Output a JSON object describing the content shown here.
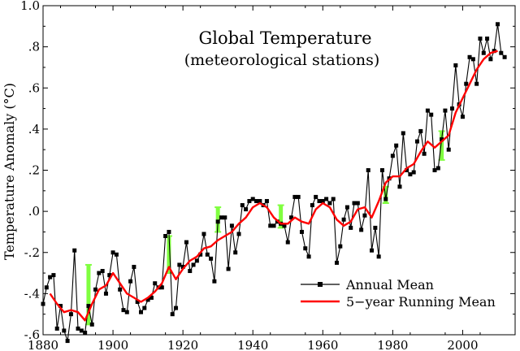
{
  "chart_data": {
    "type": "line",
    "title": "Global Temperature",
    "subtitle": "(meteorological stations)",
    "xlabel": "",
    "ylabel": "Temperature Anomaly (°C)",
    "xlim": [
      1880,
      2015
    ],
    "ylim": [
      -0.6,
      1.0
    ],
    "x_ticks": [
      1880,
      1900,
      1920,
      1940,
      1960,
      1980,
      2000
    ],
    "y_ticks": [
      -0.6,
      -0.4,
      -0.2,
      0.0,
      0.2,
      0.4,
      0.6,
      0.8,
      1.0
    ],
    "x_tick_labels": [
      "1880",
      "1900",
      "1920",
      "1940",
      "1960",
      "1980",
      "2000"
    ],
    "y_tick_labels": [
      "-.6",
      "-.4",
      "-.2",
      ".0",
      ".2",
      ".4",
      ".6",
      ".8",
      "1.0"
    ],
    "grid": false,
    "legend_position": "bottom-right",
    "series": [
      {
        "name": "Annual Mean",
        "color": "#000000",
        "marker": "square",
        "x": [
          1880,
          1881,
          1882,
          1883,
          1884,
          1885,
          1886,
          1887,
          1888,
          1889,
          1890,
          1891,
          1892,
          1893,
          1894,
          1895,
          1896,
          1897,
          1898,
          1899,
          1900,
          1901,
          1902,
          1903,
          1904,
          1905,
          1906,
          1907,
          1908,
          1909,
          1910,
          1911,
          1912,
          1913,
          1914,
          1915,
          1916,
          1917,
          1918,
          1919,
          1920,
          1921,
          1922,
          1923,
          1924,
          1925,
          1926,
          1927,
          1928,
          1929,
          1930,
          1931,
          1932,
          1933,
          1934,
          1935,
          1936,
          1937,
          1938,
          1939,
          1940,
          1941,
          1942,
          1943,
          1944,
          1945,
          1946,
          1947,
          1948,
          1949,
          1950,
          1951,
          1952,
          1953,
          1954,
          1955,
          1956,
          1957,
          1958,
          1959,
          1960,
          1961,
          1962,
          1963,
          1964,
          1965,
          1966,
          1967,
          1968,
          1969,
          1970,
          1971,
          1972,
          1973,
          1974,
          1975,
          1976,
          1977,
          1978,
          1979,
          1980,
          1981,
          1982,
          1983,
          1984,
          1985,
          1986,
          1987,
          1988,
          1989,
          1990,
          1991,
          1992,
          1993,
          1994,
          1995,
          1996,
          1997,
          1998,
          1999,
          2000,
          2001,
          2002,
          2003,
          2004,
          2005,
          2006,
          2007,
          2008,
          2009,
          2010,
          2011,
          2012
        ],
        "y": [
          -0.45,
          -0.37,
          -0.32,
          -0.31,
          -0.57,
          -0.46,
          -0.58,
          -0.63,
          -0.5,
          -0.19,
          -0.57,
          -0.58,
          -0.59,
          -0.46,
          -0.55,
          -0.38,
          -0.3,
          -0.29,
          -0.4,
          -0.31,
          -0.2,
          -0.21,
          -0.38,
          -0.48,
          -0.49,
          -0.34,
          -0.27,
          -0.44,
          -0.49,
          -0.47,
          -0.43,
          -0.42,
          -0.35,
          -0.37,
          -0.37,
          -0.12,
          -0.1,
          -0.5,
          -0.47,
          -0.26,
          -0.27,
          -0.15,
          -0.29,
          -0.26,
          -0.24,
          -0.21,
          -0.11,
          -0.21,
          -0.23,
          -0.34,
          -0.05,
          -0.03,
          -0.03,
          -0.28,
          -0.07,
          -0.2,
          -0.11,
          0.03,
          0.01,
          0.05,
          0.06,
          0.05,
          0.05,
          0.03,
          0.05,
          -0.07,
          -0.07,
          -0.05,
          -0.06,
          -0.07,
          -0.15,
          -0.03,
          0.07,
          0.07,
          -0.1,
          -0.18,
          -0.22,
          0.03,
          0.07,
          0.05,
          0.05,
          0.06,
          0.04,
          0.06,
          -0.25,
          -0.17,
          -0.04,
          0.02,
          -0.08,
          0.04,
          0.04,
          -0.09,
          -0.02,
          0.2,
          -0.19,
          -0.08,
          -0.22,
          0.2,
          0.06,
          0.16,
          0.27,
          0.32,
          0.12,
          0.38,
          0.2,
          0.18,
          0.19,
          0.34,
          0.39,
          0.28,
          0.49,
          0.47,
          0.2,
          0.21,
          0.35,
          0.49,
          0.3,
          0.5,
          0.71,
          0.52,
          0.46,
          0.62,
          0.75,
          0.74,
          0.62,
          0.84,
          0.77,
          0.84,
          0.74,
          0.78,
          0.91,
          0.77,
          0.75
        ]
      },
      {
        "name": "5-year Running Mean",
        "color": "#ff0000",
        "x": [
          1882,
          1884,
          1886,
          1888,
          1890,
          1892,
          1894,
          1896,
          1898,
          1900,
          1902,
          1904,
          1906,
          1908,
          1910,
          1912,
          1914,
          1916,
          1918,
          1920,
          1922,
          1924,
          1926,
          1928,
          1930,
          1932,
          1934,
          1936,
          1938,
          1940,
          1942,
          1944,
          1946,
          1948,
          1950,
          1952,
          1954,
          1956,
          1958,
          1960,
          1962,
          1964,
          1966,
          1968,
          1970,
          1972,
          1974,
          1976,
          1978,
          1980,
          1982,
          1984,
          1986,
          1988,
          1990,
          1992,
          1994,
          1996,
          1998,
          2000,
          2002,
          2004,
          2006,
          2008,
          2010
        ],
        "y": [
          -0.4,
          -0.45,
          -0.49,
          -0.48,
          -0.49,
          -0.53,
          -0.45,
          -0.38,
          -0.36,
          -0.3,
          -0.35,
          -0.4,
          -0.42,
          -0.44,
          -0.42,
          -0.39,
          -0.35,
          -0.27,
          -0.33,
          -0.28,
          -0.24,
          -0.22,
          -0.18,
          -0.17,
          -0.14,
          -0.12,
          -0.1,
          -0.06,
          -0.03,
          0.02,
          0.04,
          0.02,
          -0.03,
          -0.06,
          -0.06,
          -0.03,
          -0.05,
          -0.06,
          0.01,
          0.04,
          0.02,
          -0.04,
          -0.07,
          -0.05,
          0.01,
          0.02,
          -0.03,
          0.05,
          0.14,
          0.17,
          0.17,
          0.21,
          0.23,
          0.29,
          0.34,
          0.31,
          0.34,
          0.37,
          0.48,
          0.55,
          0.62,
          0.69,
          0.74,
          0.77,
          0.78
        ]
      }
    ],
    "error_bars": {
      "color": "#80ff40",
      "bars": [
        {
          "x": 1893,
          "low": -0.55,
          "high": -0.26
        },
        {
          "x": 1916,
          "low": -0.3,
          "high": -0.12
        },
        {
          "x": 1930,
          "low": -0.1,
          "high": 0.02
        },
        {
          "x": 1948,
          "low": -0.08,
          "high": 0.03
        },
        {
          "x": 1978,
          "low": 0.04,
          "high": 0.12
        },
        {
          "x": 1994,
          "low": 0.25,
          "high": 0.39
        }
      ]
    }
  },
  "legend": {
    "annual_mean_label": "Annual Mean",
    "running_mean_label": "5−year Running Mean"
  }
}
